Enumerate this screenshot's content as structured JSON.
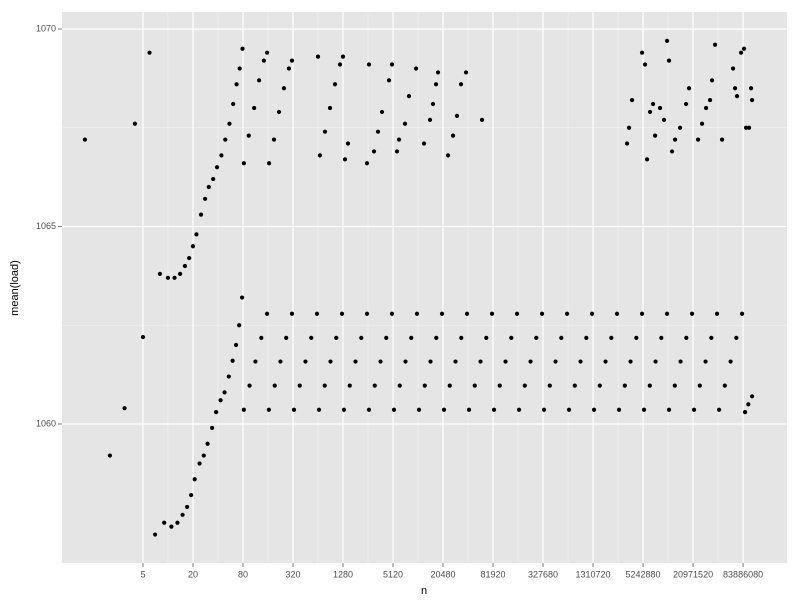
{
  "chart_data": {
    "type": "scatter",
    "x_label": "n",
    "y_label": "mean(load)",
    "color": "#000000",
    "panel_color": "#E5E5E5",
    "grid": true,
    "x_log": true,
    "xlim": [
      0.53,
      283500000
    ],
    "ylim": [
      1056.48,
      1070.43
    ],
    "xticks": [
      5,
      20,
      80,
      320,
      1280,
      5120,
      20480,
      81920,
      327680,
      1310720,
      5242880,
      20971520,
      83886080
    ],
    "yticks": [
      1060,
      1065,
      1070
    ],
    "x": [
      1,
      2,
      3,
      4,
      5,
      6,
      7,
      8,
      9,
      10,
      11,
      12,
      13,
      15,
      17,
      19,
      21,
      24,
      27,
      30,
      34,
      38,
      43,
      48,
      54,
      60,
      66,
      72,
      78,
      14,
      16,
      18,
      20,
      22,
      25,
      28,
      31,
      35,
      39,
      44,
      49,
      55,
      61,
      67,
      73,
      79,
      82,
      96,
      113,
      133,
      156,
      164,
      193,
      226,
      265,
      311,
      329,
      386,
      452,
      531,
      622,
      658,
      772,
      905,
      1062,
      1245,
      1316,
      1544,
      1810,
      2124,
      2490,
      2632,
      3087,
      3620,
      4247,
      4979,
      5263,
      6175,
      7240,
      8494,
      9958,
      10527,
      12349,
      14479,
      16988,
      19917,
      21053,
      24699,
      28959,
      33976,
      39834,
      42107,
      49398,
      57917,
      67953,
      79667,
      84214,
      98796,
      115835,
      135905,
      159334,
      168428,
      197591,
      231670,
      271811,
      318669,
      336855,
      395182,
      463340,
      543621,
      637338,
      673710,
      790364,
      926679,
      1087242,
      1274675,
      1347420,
      1580728,
      1853358,
      2174484,
      2549350,
      2694840,
      3161457,
      3706716,
      4348969,
      5098701,
      5389681,
      6322913,
      7413432,
      8697938,
      10197402,
      10779361,
      12645827,
      14826865,
      17395876,
      20394803,
      21558723,
      25291653,
      29653729,
      34791752,
      40789606,
      43117445,
      50583306,
      59307459,
      69583503,
      81579213,
      88666000,
      97000000,
      107625000,
      82,
      94,
      109,
      125,
      143,
      156,
      165,
      189,
      217,
      249,
      286,
      311,
      640,
      676,
      777,
      893,
      1025,
      1178,
      1280,
      1353,
      1470,
      2490,
      2632,
      3024,
      3378,
      3774,
      4583,
      4979,
      5721,
      6047,
      7141,
      7979,
      9689,
      12094,
      14280,
      15521,
      16867,
      17829,
      23525,
      27024,
      30190,
      33729,
      38746,
      60381,
      3363800,
      3557300,
      3864000,
      5098500,
      5541500,
      5856500,
      6365000,
      6920500,
      7314000,
      8399000,
      9385000,
      10197500,
      10779500,
      11712500,
      12730000,
      14627500,
      17270500,
      18769500,
      24096500,
      26906500,
      30073000,
      33596500,
      35504500,
      38587500,
      46850500,
      63585500,
      67193000,
      71010000,
      79356000,
      86235000,
      91184000,
      99070000,
      104690000,
      107625000
    ],
    "values": [
      1067.2,
      1059.2,
      1060.4,
      1067.6,
      1062.2,
      1069.4,
      1057.2,
      1063.8,
      1057.5,
      1063.7,
      1057.4,
      1063.7,
      1057.5,
      1057.7,
      1057.9,
      1058.2,
      1058.6,
      1059.0,
      1059.2,
      1059.5,
      1059.9,
      1060.3,
      1060.6,
      1060.8,
      1061.2,
      1061.6,
      1062.0,
      1062.5,
      1063.2,
      1063.8,
      1064.0,
      1064.2,
      1064.5,
      1064.8,
      1065.3,
      1065.7,
      1066.0,
      1066.2,
      1066.5,
      1066.8,
      1067.2,
      1067.6,
      1068.1,
      1068.6,
      1069.0,
      1069.5,
      1060.36,
      1060.97,
      1061.58,
      1062.18,
      1062.79,
      1060.36,
      1060.97,
      1061.58,
      1062.18,
      1062.79,
      1060.36,
      1060.97,
      1061.58,
      1062.18,
      1062.79,
      1060.36,
      1060.97,
      1061.58,
      1062.18,
      1062.79,
      1060.36,
      1060.97,
      1061.58,
      1062.18,
      1062.79,
      1060.36,
      1060.97,
      1061.58,
      1062.18,
      1062.79,
      1060.36,
      1060.97,
      1061.58,
      1062.18,
      1062.79,
      1060.36,
      1060.97,
      1061.58,
      1062.18,
      1062.79,
      1060.36,
      1060.97,
      1061.58,
      1062.18,
      1062.79,
      1060.36,
      1060.97,
      1061.58,
      1062.18,
      1062.79,
      1060.36,
      1060.97,
      1061.58,
      1062.18,
      1062.79,
      1060.36,
      1060.97,
      1061.58,
      1062.18,
      1062.79,
      1060.36,
      1060.97,
      1061.58,
      1062.18,
      1062.79,
      1060.36,
      1060.97,
      1061.58,
      1062.18,
      1062.79,
      1060.36,
      1060.97,
      1061.58,
      1062.18,
      1062.79,
      1060.36,
      1060.97,
      1061.58,
      1062.18,
      1062.79,
      1060.36,
      1060.97,
      1061.58,
      1062.18,
      1062.79,
      1060.36,
      1060.97,
      1061.58,
      1062.18,
      1062.79,
      1060.36,
      1060.97,
      1061.58,
      1062.18,
      1062.79,
      1060.36,
      1060.97,
      1061.58,
      1062.18,
      1062.79,
      1060.3,
      1060.5,
      1060.7,
      1066.6,
      1067.3,
      1068.0,
      1068.7,
      1069.2,
      1069.4,
      1066.6,
      1067.2,
      1067.9,
      1068.5,
      1069.0,
      1069.2,
      1069.3,
      1066.8,
      1067.4,
      1068.0,
      1068.6,
      1069.1,
      1069.3,
      1066.7,
      1067.1,
      1066.6,
      1069.1,
      1066.9,
      1067.4,
      1067.9,
      1068.7,
      1069.1,
      1066.9,
      1067.2,
      1067.6,
      1068.3,
      1069.0,
      1067.1,
      1067.7,
      1068.1,
      1068.6,
      1068.9,
      1066.8,
      1067.3,
      1067.8,
      1068.6,
      1068.9,
      1067.7,
      1067.1,
      1067.5,
      1068.2,
      1069.4,
      1069.1,
      1066.7,
      1067.9,
      1068.1,
      1067.3,
      1068.0,
      1067.7,
      1069.7,
      1069.2,
      1066.9,
      1067.2,
      1067.5,
      1068.1,
      1068.5,
      1067.2,
      1067.6,
      1068.0,
      1068.2,
      1068.7,
      1069.6,
      1067.2,
      1069.0,
      1068.5,
      1068.3,
      1069.4,
      1069.5,
      1067.5,
      1067.5,
      1068.5,
      1068.2
    ]
  }
}
